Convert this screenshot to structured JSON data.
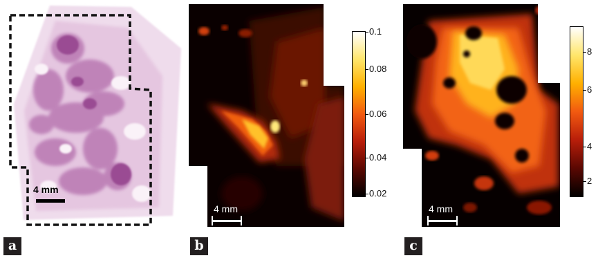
{
  "panels": {
    "a": {
      "label": "a",
      "scalebar": "4 mm"
    },
    "b": {
      "label": "b",
      "scalebar": "4 mm",
      "colorbar_ticks": [
        "0.1",
        "0.08",
        "0.06",
        "0.04",
        "0.02"
      ],
      "colormap": [
        "#ffffff",
        "#ffe66b",
        "#ffb000",
        "#f25a10",
        "#b81e0a",
        "#5a0802",
        "#000000"
      ]
    },
    "c": {
      "label": "c",
      "scalebar": "4 mm",
      "colorbar_ticks": [
        "8",
        "6",
        "4",
        "2"
      ],
      "colormap": [
        "#ffffff",
        "#ffe66b",
        "#ffb000",
        "#f25a10",
        "#b81e0a",
        "#5a0802",
        "#000000"
      ]
    }
  },
  "colors": {
    "tissue_light": "#e9cfe6",
    "tissue_dark": "#a7619f",
    "heat_bg": "#080000"
  }
}
